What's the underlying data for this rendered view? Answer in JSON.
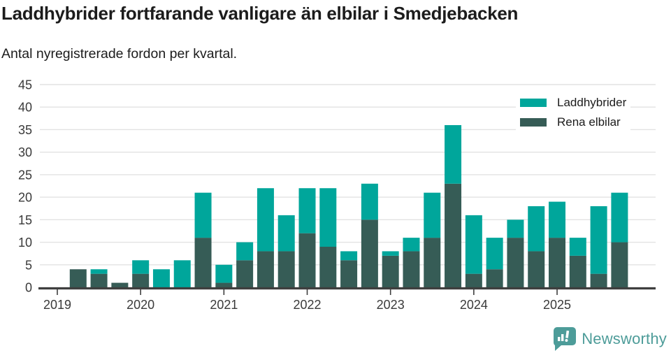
{
  "header": {
    "title": "Laddhybrider fortfarande vanligare än elbilar i Smedjebacken",
    "subtitle": "Antal nyregistrerade fordon per kvartal."
  },
  "legend": {
    "items": [
      {
        "label": "Laddhybrider",
        "color": "#00a69b"
      },
      {
        "label": "Rena elbilar",
        "color": "#365c56"
      }
    ]
  },
  "footer": {
    "brand": "Newsworthy",
    "brand_color": "#4d9c99"
  },
  "colors": {
    "background": "#ffffff",
    "laddhybrider": "#00a69b",
    "rena_elbilar": "#365c56",
    "gridline": "#e2e2e2",
    "axis_line": "#3f3f3f",
    "tick_text": "#3a3a3a",
    "title_text": "#1c1c1c"
  },
  "chart_data": {
    "type": "bar",
    "stacked": true,
    "title": "Laddhybrider fortfarande vanligare än elbilar i Smedjebacken",
    "subtitle": "Antal nyregistrerade fordon per kvartal.",
    "xlabel": "",
    "ylabel": "",
    "ylim": [
      0,
      45
    ],
    "y_ticks": [
      0,
      5,
      10,
      15,
      20,
      25,
      30,
      35,
      40,
      45
    ],
    "x_tick_labels": [
      "2019",
      "2020",
      "2021",
      "2022",
      "2023",
      "2024",
      "2025"
    ],
    "grid": true,
    "legend_position": "top-right",
    "categories": [
      "2019 Q1",
      "2019 Q2",
      "2019 Q3",
      "2019 Q4",
      "2020 Q1",
      "2020 Q2",
      "2020 Q3",
      "2020 Q4",
      "2021 Q1",
      "2021 Q2",
      "2021 Q3",
      "2021 Q4",
      "2022 Q1",
      "2022 Q2",
      "2022 Q3",
      "2022 Q4",
      "2023 Q1",
      "2023 Q2",
      "2023 Q3",
      "2023 Q4",
      "2024 Q1",
      "2024 Q2",
      "2024 Q3",
      "2024 Q4",
      "2025 Q1",
      "2025 Q2",
      "2025 Q3",
      "2025 Q4"
    ],
    "series": [
      {
        "name": "Rena elbilar",
        "color": "#365c56",
        "values": [
          0,
          4,
          3,
          1,
          3,
          0,
          0,
          11,
          1,
          6,
          8,
          8,
          12,
          9,
          6,
          15,
          7,
          8,
          11,
          23,
          3,
          4,
          11,
          8,
          11,
          7,
          3,
          10
        ]
      },
      {
        "name": "Laddhybrider",
        "color": "#00a69b",
        "values": [
          0,
          0,
          1,
          0,
          3,
          4,
          6,
          10,
          4,
          4,
          14,
          8,
          10,
          13,
          2,
          8,
          1,
          3,
          10,
          13,
          13,
          7,
          4,
          10,
          8,
          4,
          15,
          11
        ]
      }
    ],
    "totals": [
      0,
      4,
      4,
      1,
      6,
      4,
      6,
      21,
      5,
      10,
      22,
      16,
      22,
      22,
      8,
      23,
      8,
      11,
      21,
      36,
      16,
      11,
      15,
      18,
      19,
      11,
      18,
      21
    ]
  }
}
